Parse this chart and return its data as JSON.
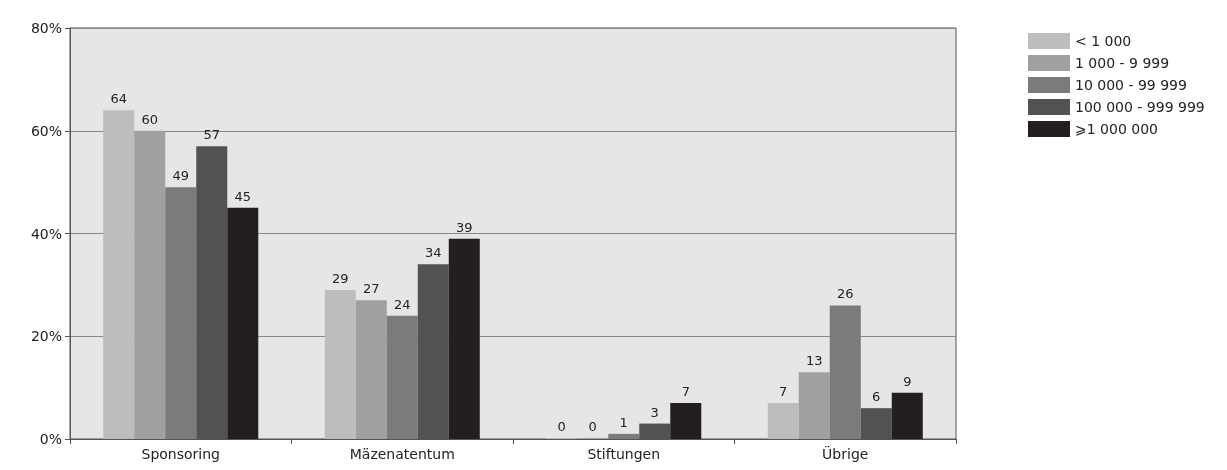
{
  "chart_data": {
    "type": "bar",
    "categories": [
      "Sponsoring",
      "Mäzenatentum",
      "Stiftungen",
      "Übrige"
    ],
    "series": [
      {
        "name": "< 1 000",
        "color": "#bdbdbf",
        "values": [
          64,
          29,
          0,
          7
        ]
      },
      {
        "name": "1 000 - 9 999",
        "color": "#a0a0a2",
        "values": [
          60,
          27,
          0,
          13
        ]
      },
      {
        "name": "10 000 - 99 999",
        "color": "#7b7b7d",
        "values": [
          49,
          24,
          1,
          26
        ]
      },
      {
        "name": "100 000 - 999 999",
        "color": "#525254",
        "values": [
          57,
          34,
          3,
          6
        ]
      },
      {
        "name": "⩾1 000 000",
        "color": "#231f20",
        "values": [
          45,
          39,
          7,
          9
        ]
      }
    ],
    "ylim": [
      0,
      80
    ],
    "yticks": [
      {
        "value": 0,
        "label": "0%"
      },
      {
        "value": 20,
        "label": "20%"
      },
      {
        "value": 40,
        "label": "40%"
      },
      {
        "value": 60,
        "label": "60%"
      },
      {
        "value": 80,
        "label": "80%"
      }
    ],
    "grid": "y",
    "legend": "top right",
    "data_labels": true
  }
}
